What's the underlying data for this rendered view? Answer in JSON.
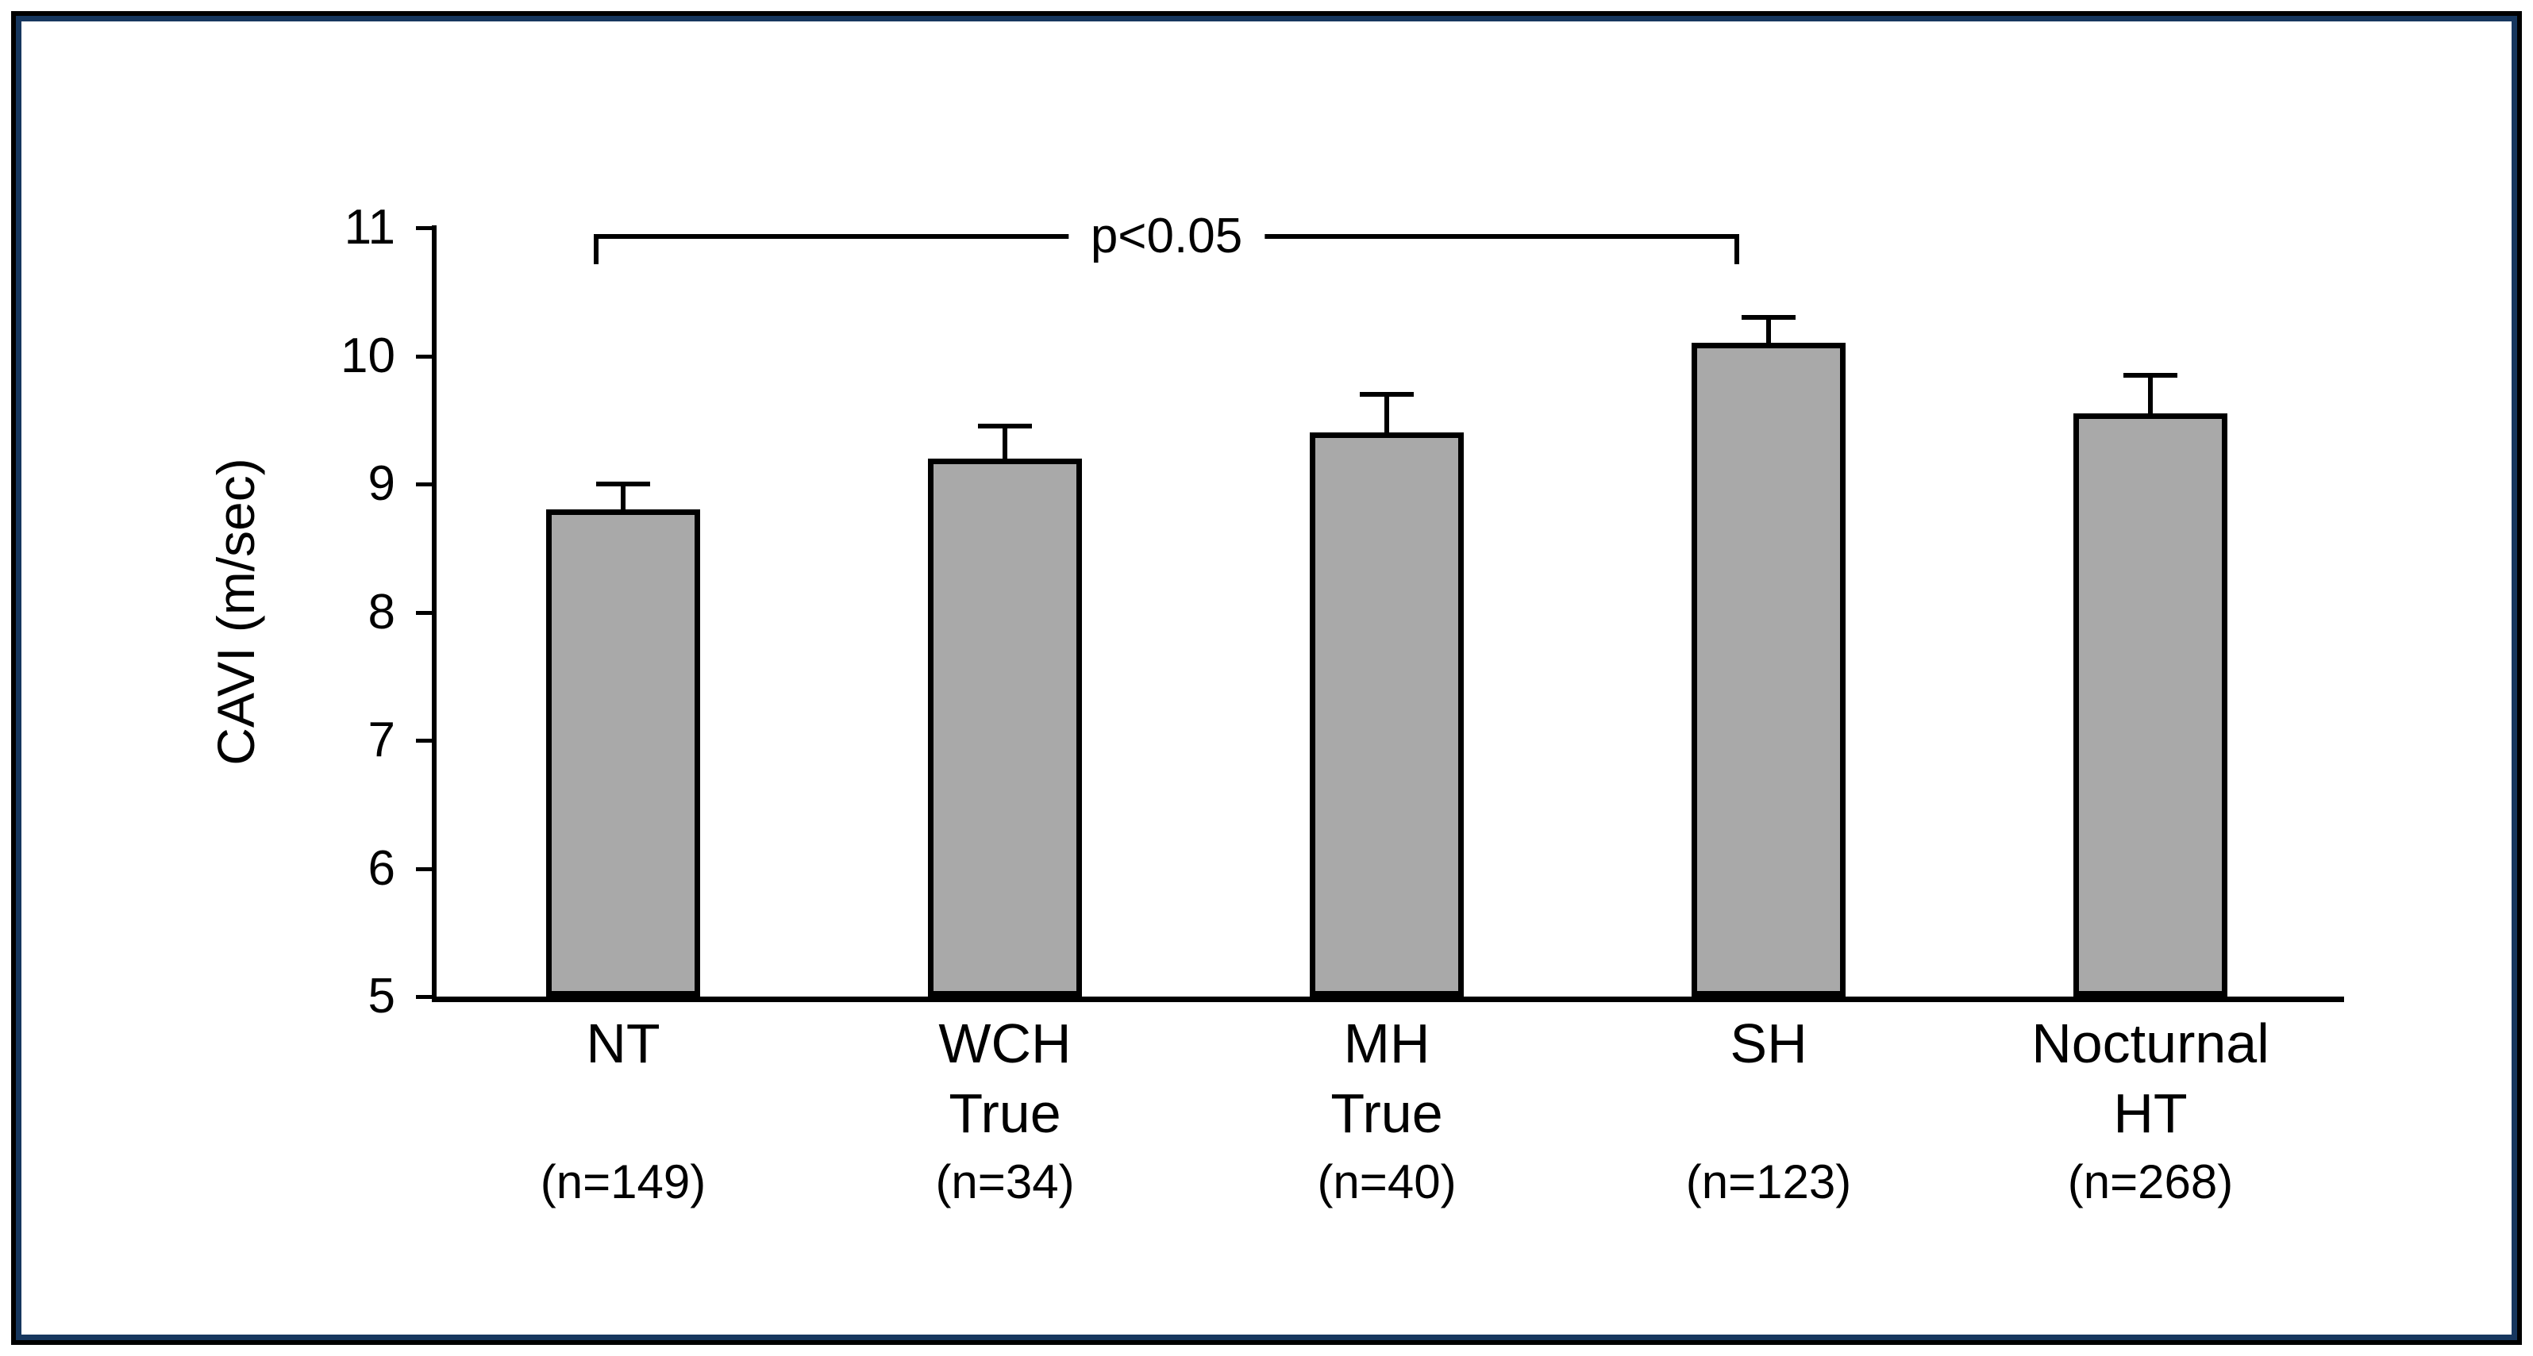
{
  "figure": {
    "background": "#ffffff",
    "outer_border_color": "#000000",
    "inner_border_color": "#17375e"
  },
  "chart_data": {
    "type": "bar",
    "title": "",
    "xlabel": "",
    "ylabel": "CAVI (m/sec)",
    "ylim": [
      5,
      11
    ],
    "yticks": [
      5,
      6,
      7,
      8,
      9,
      10,
      11
    ],
    "grid": false,
    "legend": "none",
    "bar_fill_color": "#a9a9a9",
    "bar_border_color": "#000000",
    "error_bars": "upper only",
    "categories": [
      {
        "label_line1": "NT",
        "label_line2": "",
        "n": "(n=149)"
      },
      {
        "label_line1": "WCH",
        "label_line2": "True",
        "n": "(n=34)"
      },
      {
        "label_line1": "MH",
        "label_line2": "True",
        "n": "(n=40)"
      },
      {
        "label_line1": "SH",
        "label_line2": "",
        "n": "(n=123)"
      },
      {
        "label_line1": "Nocturnal",
        "label_line2": "HT",
        "n": "(n=268)"
      }
    ],
    "series": [
      {
        "name": "CAVI",
        "values": [
          8.8,
          9.2,
          9.4,
          10.1,
          9.55
        ],
        "errors_plus": [
          0.2,
          0.25,
          0.3,
          0.2,
          0.3
        ]
      }
    ],
    "annotation": {
      "label": "p<0.05",
      "from_category_index": 0,
      "to_category_index": 3,
      "y_value": 10.93,
      "tick_drop_value": 0.2
    }
  }
}
